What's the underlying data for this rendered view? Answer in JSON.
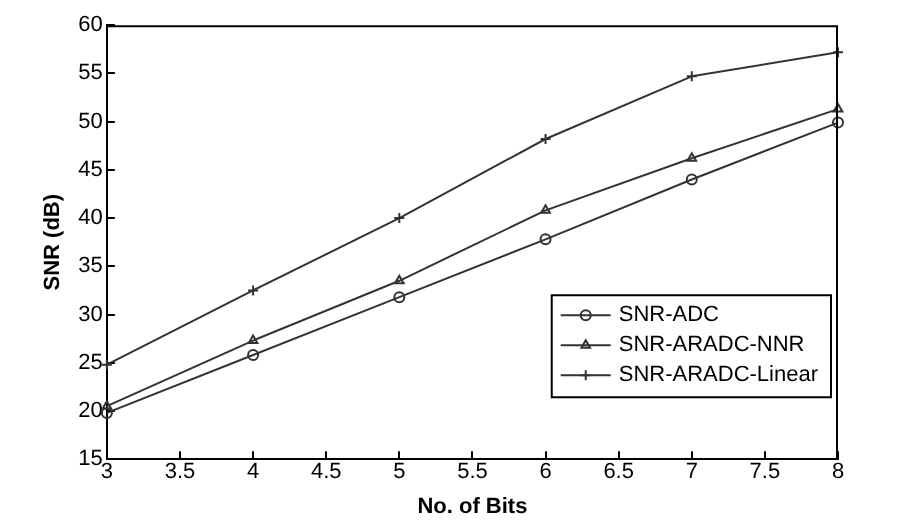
{
  "chart_data": {
    "type": "line",
    "xlabel": "No. of Bits",
    "ylabel": "SNR (dB)",
    "x": [
      3,
      4,
      5,
      6,
      7,
      8
    ],
    "series": [
      {
        "name": "SNR-ADC",
        "color": "#333333",
        "marker": "circle",
        "values": [
          19.8,
          25.8,
          31.8,
          37.8,
          44,
          49.9
        ]
      },
      {
        "name": "SNR-ARADC-NNR",
        "color": "#333333",
        "marker": "triangle",
        "values": [
          20.5,
          27.3,
          33.5,
          40.8,
          46.2,
          51.3
        ]
      },
      {
        "name": "SNR-ARADC-Linear",
        "color": "#333333",
        "marker": "cross",
        "values": [
          24.8,
          32.5,
          40,
          48.2,
          54.7,
          57.2
        ]
      }
    ],
    "xlim": [
      3,
      8
    ],
    "xticks": [
      3,
      3.5,
      4,
      4.5,
      5,
      5.5,
      6,
      6.5,
      7,
      7.5,
      8
    ],
    "ylim": [
      15,
      60
    ],
    "yticks": [
      15,
      20,
      25,
      30,
      35,
      40,
      45,
      50,
      55,
      60
    ],
    "grid": false,
    "legend": "right",
    "line_style": "solid"
  }
}
